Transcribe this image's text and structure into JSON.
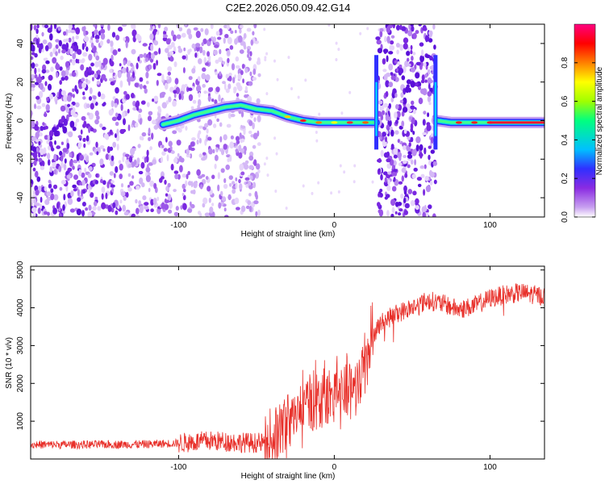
{
  "title": "C2E2.2026.050.09.42.G14",
  "colors": {
    "snr_line": "#e8302a",
    "spectrogram_noise": "#7a28e0",
    "axis": "#000000"
  },
  "colorbar": {
    "label": "Normalized spectral amplitude",
    "ticks": [
      "0.0",
      "0.2",
      "0.4",
      "0.6",
      "0.8"
    ],
    "tick_values": [
      0.0,
      0.2,
      0.4,
      0.6,
      0.8
    ],
    "range": [
      0,
      1
    ],
    "colormap": [
      "#ffffff",
      "#c8a0f0",
      "#8a2be2",
      "#3030ff",
      "#00c0ff",
      "#00ff80",
      "#a0ff00",
      "#ffff00",
      "#ff8000",
      "#ff0000",
      "#ff0080"
    ]
  },
  "chart_data": [
    {
      "type": "heatmap",
      "xlabel": "Height of straight line (km)",
      "ylabel": "Frequency (Hz)",
      "xlim": [
        -195,
        135
      ],
      "ylim": [
        -50,
        50
      ],
      "x_ticks": [
        -100,
        0,
        100
      ],
      "x_tick_labels": [
        "-100",
        "0",
        "100"
      ],
      "y_ticks": [
        -40,
        -20,
        0,
        20,
        40
      ],
      "y_tick_labels": [
        "-40",
        "-20",
        "0",
        "20",
        "40"
      ],
      "noise_regions": [
        [
          -195,
          -48
        ],
        [
          28,
          65
        ]
      ],
      "signal_trace": {
        "x": [
          -110,
          -100,
          -90,
          -80,
          -70,
          -60,
          -50,
          -40,
          -30,
          -20,
          -10,
          0,
          10,
          20,
          27,
          66,
          75,
          85,
          95,
          105,
          115,
          125,
          135
        ],
        "y": [
          -2,
          0,
          3,
          5,
          7,
          8,
          6,
          5,
          2,
          0,
          -1,
          -1,
          -1,
          -1,
          -1,
          0,
          -1,
          -1,
          -1,
          -1,
          -1,
          -1,
          -1
        ]
      }
    },
    {
      "type": "line",
      "xlabel": "Height of straight line (km)",
      "ylabel": "SNR (10 * v/v)",
      "xlim": [
        -195,
        135
      ],
      "ylim": [
        0,
        5100
      ],
      "x_ticks": [
        -100,
        0,
        100
      ],
      "x_tick_labels": [
        "-100",
        "0",
        "100"
      ],
      "y_ticks": [
        1000,
        2000,
        3000,
        4000,
        5000
      ],
      "y_tick_labels": [
        "1000",
        "2000",
        "3000",
        "4000",
        "5000"
      ],
      "series": [
        {
          "x": [
            -195,
            -160,
            -120,
            -100,
            -80,
            -60,
            -45,
            -35,
            -25,
            -15,
            -5,
            5,
            15,
            20,
            25,
            30,
            40,
            50,
            60,
            70,
            80,
            90,
            100,
            110,
            120,
            135
          ],
          "values": [
            380,
            380,
            390,
            420,
            480,
            440,
            420,
            700,
            1200,
            1500,
            1650,
            1800,
            2000,
            2600,
            3300,
            3600,
            3850,
            4000,
            4200,
            4100,
            3950,
            4050,
            4250,
            4350,
            4400,
            4300
          ]
        }
      ]
    }
  ]
}
